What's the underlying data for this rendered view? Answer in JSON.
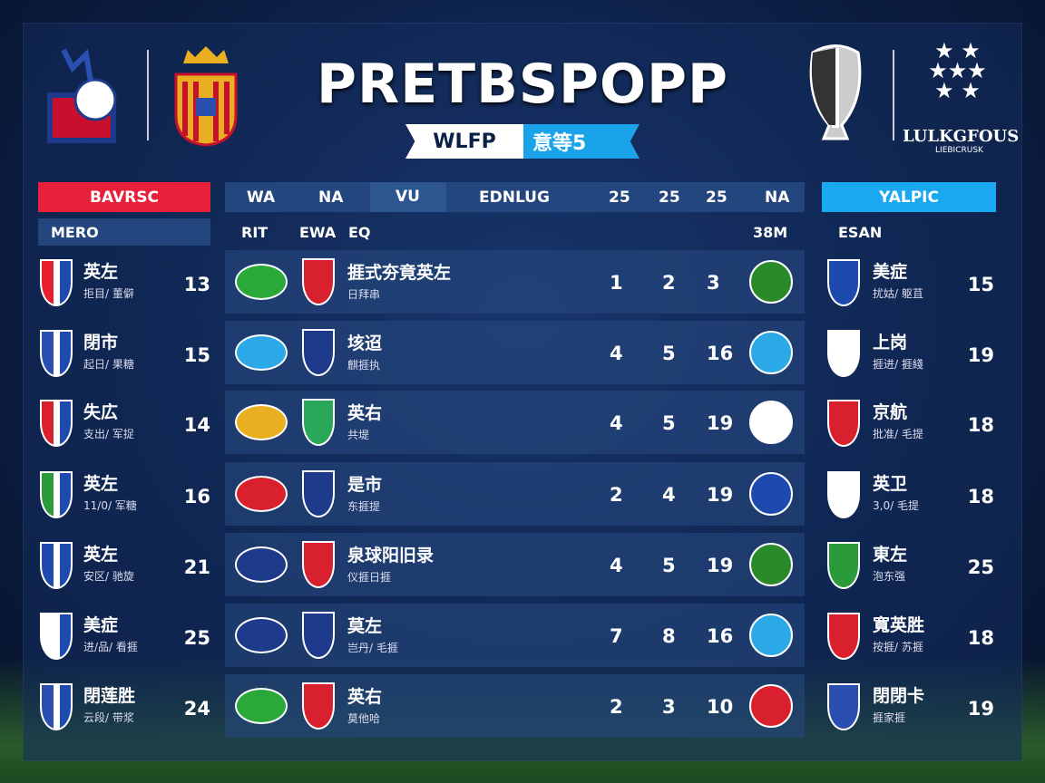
{
  "header": {
    "title": "PRETBSPOPP",
    "ribbon_left": "WLFP",
    "ribbon_right": "意等5",
    "league_name": "LULKGFOUS",
    "league_sub": "LIEBICRUSK"
  },
  "left": {
    "header": "BAVRSC",
    "subheader": "MERO",
    "rows": [
      {
        "name": "英左",
        "sub": "拒目/ 董僻",
        "value": "13",
        "crest": "#e8202e"
      },
      {
        "name": "閉市",
        "sub": "起日/ 果糖",
        "value": "15",
        "crest": "#2a4fb0"
      },
      {
        "name": "失広",
        "sub": "支出/ 军捉",
        "value": "14",
        "crest": "#d8202e"
      },
      {
        "name": "英左",
        "sub": "11/0/ 军糖",
        "value": "16",
        "crest": "#2a9a3a"
      },
      {
        "name": "英左",
        "sub": "安区/ 驰旋",
        "value": "21",
        "crest": "#1e4ab0"
      },
      {
        "name": "美症",
        "sub": "进/品/ 看捱",
        "value": "25",
        "crest": "#ffffff"
      },
      {
        "name": "閉莲胜",
        "sub": "云段/ 带浆",
        "value": "24",
        "crest": "#2a4fb0"
      }
    ]
  },
  "middle": {
    "headers": [
      "WA",
      "NA",
      "VU",
      "EDNLUG",
      "25",
      "25",
      "25",
      "NA"
    ],
    "subheaders": [
      "RIT",
      "EWA",
      "EQ",
      "38M"
    ],
    "rows": [
      {
        "name": "捱式夯竟英左",
        "sub": "日拜串",
        "n1": "1",
        "n2": "2",
        "n3": "3",
        "c1": "#2aa83a",
        "c2": "#d8202e",
        "c3": "#2a8a2a"
      },
      {
        "name": "垓迢",
        "sub": "麒捱执",
        "n1": "4",
        "n2": "5",
        "n3": "16",
        "c1": "#2aa8e8",
        "c2": "#1e3a8a",
        "c3": "#2aa8e8"
      },
      {
        "name": "英右",
        "sub": "共堤",
        "n1": "4",
        "n2": "5",
        "n3": "19",
        "c1": "#e8b020",
        "c2": "#2aa85a",
        "c3": "#ffffff"
      },
      {
        "name": "是市",
        "sub": "东捱提",
        "n1": "2",
        "n2": "4",
        "n3": "19",
        "c1": "#d8202e",
        "c2": "#1e3a8a",
        "c3": "#1e4ab0"
      },
      {
        "name": "泉球阳旧录",
        "sub": "仪捱日捱",
        "n1": "4",
        "n2": "5",
        "n3": "19",
        "c1": "#1e3a8a",
        "c2": "#d8202e",
        "c3": "#2a8a2a"
      },
      {
        "name": "莫左",
        "sub": "岂丹/ 毛捱",
        "n1": "7",
        "n2": "8",
        "n3": "16",
        "c1": "#1e3a8a",
        "c2": "#1e3a8a",
        "c3": "#2aa8e8"
      },
      {
        "name": "英右",
        "sub": "莫他哈",
        "n1": "2",
        "n2": "3",
        "n3": "10",
        "c1": "#2aa83a",
        "c2": "#d8202e",
        "c3": "#d8202e"
      }
    ]
  },
  "right": {
    "header": "YALPIC",
    "subheader": "ESAN",
    "rows": [
      {
        "name": "美症",
        "sub": "扰姑/ 躯苴",
        "value": "15",
        "crest": "#1e4ab0"
      },
      {
        "name": "上岗",
        "sub": "捱进/ 捱綫",
        "value": "19",
        "crest": "#ffffff"
      },
      {
        "name": "京航",
        "sub": "批准/ 毛提",
        "value": "18",
        "crest": "#d8202e"
      },
      {
        "name": "英卫",
        "sub": "3,0/ 毛提",
        "value": "18",
        "crest": "#ffffff"
      },
      {
        "name": "東左",
        "sub": "泡东强",
        "value": "25",
        "crest": "#2a9a3a"
      },
      {
        "name": "寬英胜",
        "sub": "按捱/ 苏捱",
        "value": "18",
        "crest": "#d8202e"
      },
      {
        "name": "閉閉卡",
        "sub": "捱家捱",
        "value": "19",
        "crest": "#2a4fb0"
      }
    ]
  },
  "colors": {
    "left_header": "#e8203a",
    "right_header": "#1aa8f0",
    "header_bar": "#24467e"
  }
}
